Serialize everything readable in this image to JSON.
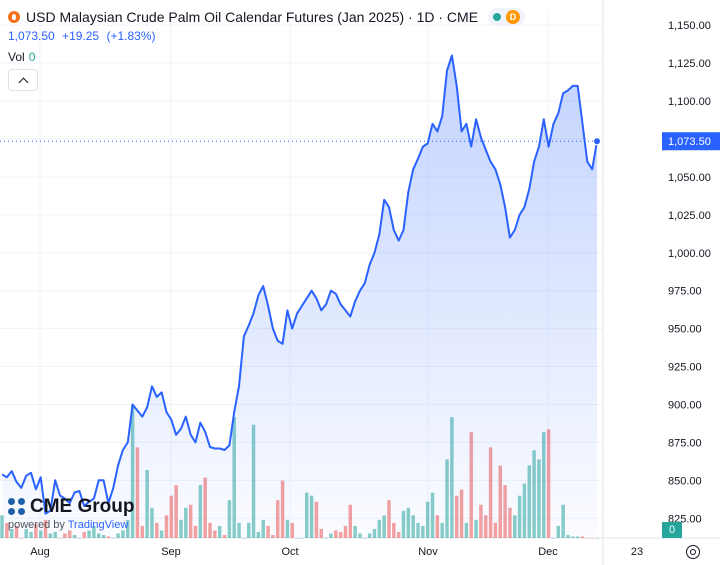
{
  "header": {
    "title": "USD Malaysian Crude Palm Oil Calendar Futures (Jan 2025) · 1D · CME",
    "badge_letter": "D",
    "last": "1,073.50",
    "change": "+19.25",
    "change_pct": "(+1.83%)",
    "volume_label": "Vol",
    "volume_value": "0"
  },
  "watermark": {
    "brand": "CME Group",
    "powered": "powered by",
    "tv": "TradingView"
  },
  "colors": {
    "line": "#2962ff",
    "area": "#2962ff",
    "vol_up": "#26a69a",
    "vol_down": "#ef5350",
    "grid": "#f0f3fa"
  },
  "chart_data": {
    "type": "area",
    "y_axis": {
      "min": 812,
      "max": 1160,
      "ticks": [
        825,
        850,
        875,
        900,
        925,
        950,
        975,
        1000,
        1025,
        1050,
        1075,
        1100,
        1125,
        1150
      ],
      "tick_labels": [
        "825.00",
        "850.00",
        "875.00",
        "900.00",
        "925.00",
        "950.00",
        "975.00",
        "1,000.00",
        "1,025.00",
        "1,050.00",
        "1,075.00",
        "1,100.00",
        "1,125.00",
        "1,150.00"
      ]
    },
    "x_axis": {
      "labels": [
        "Aug",
        "Sep",
        "Oct",
        "Nov",
        "Dec",
        "23"
      ]
    },
    "last_price_label": "1,073.50",
    "last_volume_label": "0",
    "series": [
      {
        "values": [
          854,
          852,
          856,
          849,
          845,
          853,
          855,
          844,
          852,
          828,
          830,
          850,
          840,
          838,
          835,
          842,
          843,
          833,
          836,
          838,
          850,
          850,
          835,
          845,
          860,
          870,
          875,
          900,
          896,
          892,
          898,
          912,
          905,
          908,
          895,
          890,
          880,
          884,
          892,
          880,
          875,
          888,
          882,
          872,
          871,
          871,
          870,
          873,
          895,
          912,
          945,
          952,
          960,
          972,
          978,
          965,
          950,
          942,
          940,
          962,
          950,
          960,
          965,
          970,
          975,
          970,
          962,
          966,
          975,
          973,
          966,
          962,
          958,
          968,
          975,
          980,
          992,
          1000,
          1012,
          1035,
          1030,
          1015,
          1008,
          1015,
          1040,
          1055,
          1062,
          1070,
          1072,
          1085,
          1080,
          1090,
          1120,
          1130,
          1110,
          1080,
          1085,
          1070,
          1088,
          1076,
          1068,
          1060,
          1055,
          1045,
          1030,
          1010,
          1015,
          1025,
          1030,
          1042,
          1060,
          1070,
          1088,
          1070,
          1085,
          1092,
          1105,
          1107,
          1110,
          1110,
          1085,
          1060,
          1055,
          1073.5
        ]
      }
    ],
    "volume": [
      15,
      10,
      6,
      8,
      0,
      6,
      4,
      9,
      5,
      12,
      3,
      4,
      0,
      3,
      5,
      2,
      0,
      4,
      5,
      8,
      3,
      2,
      1,
      0,
      3,
      5,
      12,
      88,
      60,
      8,
      45,
      20,
      10,
      5,
      15,
      28,
      35,
      12,
      20,
      22,
      8,
      35,
      40,
      10,
      5,
      8,
      2,
      25,
      80,
      10,
      0,
      10,
      75,
      4,
      12,
      8,
      2,
      25,
      38,
      12,
      10,
      0,
      0,
      30,
      28,
      24,
      6,
      0,
      3,
      5,
      4,
      8,
      22,
      8,
      3,
      0,
      3,
      6,
      12,
      15,
      25,
      10,
      4,
      18,
      20,
      15,
      10,
      8,
      24,
      30,
      15,
      10,
      52,
      80,
      28,
      32,
      10,
      70,
      12,
      22,
      15,
      60,
      10,
      48,
      35,
      20,
      15,
      28,
      36,
      48,
      58,
      52,
      70,
      72,
      0,
      8,
      22,
      2,
      1,
      1,
      1,
      0,
      0,
      0
    ]
  }
}
